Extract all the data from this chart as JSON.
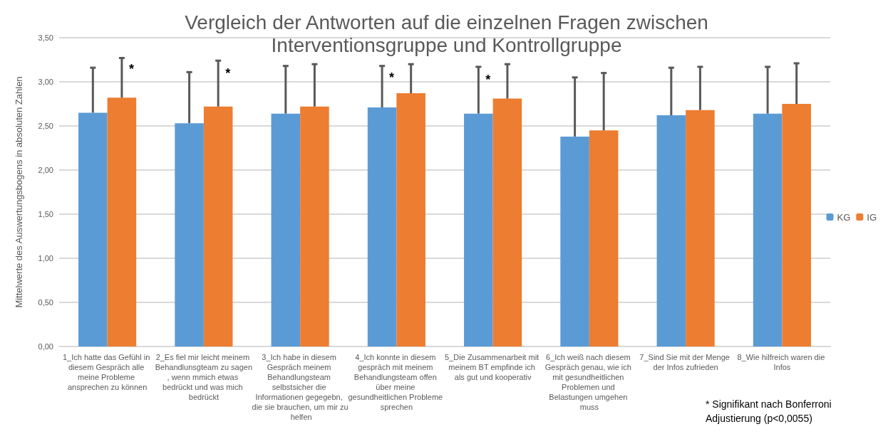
{
  "chart_data": {
    "type": "bar",
    "title": "Vergleich der Antworten auf die einzelnen Fragen zwischen\nInterventionsgruppe und Kontrollgruppe",
    "ylabel": "Mittelwerte des Auswertungsbogens in absoluten Zahlen",
    "categories": [
      "1_Ich hatte das Gefühl in diesem Gespräch alle meine Probleme ansprechen zu können",
      "2_Es fiel mir leicht meinem Behandlunsgteam zu sagen, wenn mmich etwas bedrückt und was mich bedrückt",
      "3_Ich habe in diesem Gespräch meinem Behandlungsteam selbstsicher die Informationen gegegebn, die sie brauchen, um mir zu helfen",
      "4_Ich konnte in diesem gespräch mit meinem Behandlungsteam offen über meine gesundheitlichen Probleme sprechen",
      "5_Die Zusammenarbeit mit meinem BT empfinde ich als gut und kooperativ",
      "6_Ich weiß nach diesem Gespräch genau, wie ich mit gesundheitlichen Problemen und Belastungen umgehen muss",
      "7_Sind Sie mit der Menge der Infos zufrieden",
      "8_Wie hilfreich waren die Infos"
    ],
    "series": [
      {
        "name": "KG",
        "color": "#5b9bd5",
        "values": [
          2.65,
          2.53,
          2.64,
          2.71,
          2.64,
          2.38,
          2.62,
          2.64
        ],
        "errors": [
          [
            2.65,
            3.16
          ],
          [
            2.53,
            3.11
          ],
          [
            2.64,
            3.18
          ],
          [
            2.71,
            3.18
          ],
          [
            2.64,
            3.17
          ],
          [
            2.38,
            3.05
          ],
          [
            2.62,
            3.16
          ],
          [
            2.64,
            3.17
          ]
        ]
      },
      {
        "name": "IG",
        "color": "#ed7d31",
        "values": [
          2.82,
          2.72,
          2.72,
          2.87,
          2.81,
          2.45,
          2.68,
          2.75
        ],
        "errors": [
          [
            2.82,
            3.27
          ],
          [
            2.72,
            3.24
          ],
          [
            2.72,
            3.2
          ],
          [
            2.87,
            3.2
          ],
          [
            2.81,
            3.2
          ],
          [
            2.45,
            3.1
          ],
          [
            2.68,
            3.17
          ],
          [
            2.75,
            3.21
          ]
        ]
      }
    ],
    "ylim": [
      0,
      3.5
    ],
    "yticks": [
      {
        "value": 0,
        "label": "0,00"
      },
      {
        "value": 0.5,
        "label": "0,50"
      },
      {
        "value": 1,
        "label": "1,00"
      },
      {
        "value": 1.5,
        "label": "1,50"
      },
      {
        "value": 2,
        "label": "2,00"
      },
      {
        "value": 2.5,
        "label": "2,50"
      },
      {
        "value": 3,
        "label": "3,00"
      },
      {
        "value": 3.5,
        "label": "3,50"
      }
    ],
    "grid": "y",
    "legend": "right",
    "annotations": [
      {
        "text": "*",
        "x": "1_Ich hatte das Gefühl in diesem Gespräch alle meine Probleme ansprechen zu können",
        "y": 2.82
      },
      {
        "text": "*",
        "x": "2_Es fiel mir leicht meinem Behandlunsgteam zu sagen, wenn mmich etwas bedrückt und was mich bedrückt",
        "y": 2.72
      },
      {
        "text": "*",
        "x": "4_Ich konnte in diesem gespräch mit meinem Behandlungsteam offen über meine gesundheitlichen Probleme sprechen",
        "y": 2.71
      },
      {
        "text": "*",
        "x": "5_Die Zusammenarbeit mit meinem BT empfinde ich als gut und kooperativ",
        "y": 2.64
      },
      "* Signifikant nach Bonferroni Adjustierung (p<0,0055)"
    ]
  }
}
